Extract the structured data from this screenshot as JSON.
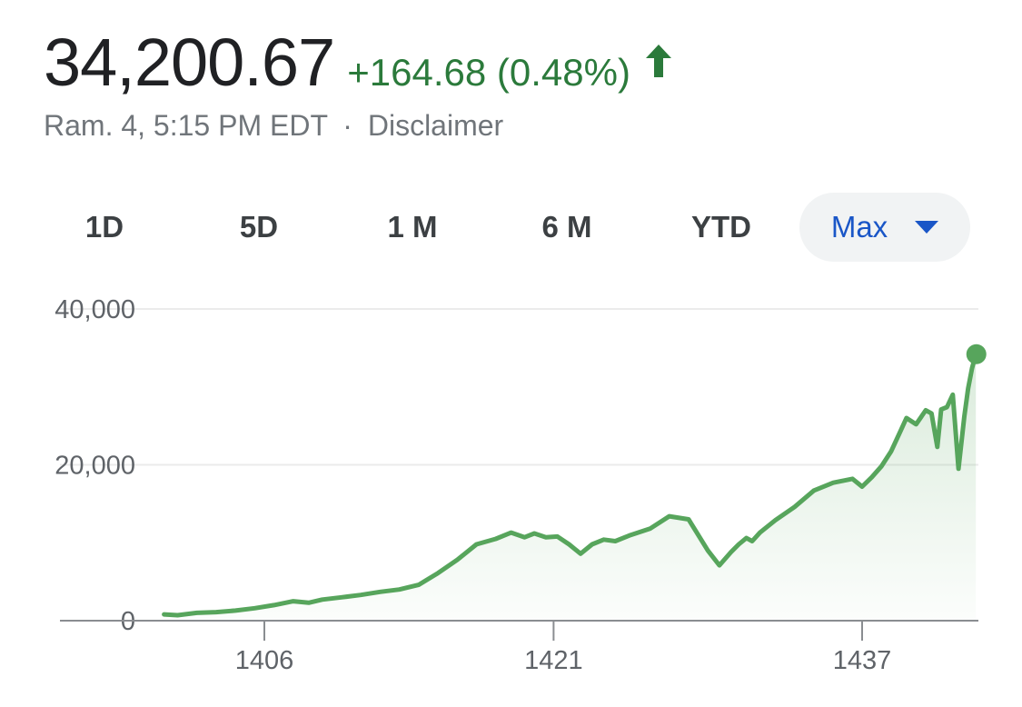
{
  "quote": {
    "price": "34,200.67",
    "change": "+164.68 (0.48%)",
    "direction_icon": "arrow-up-icon",
    "positive_color": "#2b7a3b",
    "timestamp": "Ram. 4, 5:15 PM EDT",
    "separator": "·",
    "disclaimer_label": "Disclaimer"
  },
  "range_tabs": [
    {
      "label": "1D",
      "selected": false
    },
    {
      "label": "5D",
      "selected": false
    },
    {
      "label": "1 M",
      "selected": false
    },
    {
      "label": "6 M",
      "selected": false
    },
    {
      "label": "YTD",
      "selected": false
    },
    {
      "label": "Max",
      "selected": true,
      "icon": "caret-down-icon"
    }
  ],
  "colors": {
    "line": "#57a55c",
    "selected_tab_text": "#1a56c7",
    "selected_tab_bg": "#f1f3f4"
  },
  "chart_data": {
    "type": "area",
    "title": "",
    "xlabel": "",
    "ylabel": "",
    "ylim": [
      0,
      40000
    ],
    "y_ticks": [
      "0",
      "20,000",
      "40,000"
    ],
    "x_ticks": [
      {
        "value": 1406,
        "label": "1406"
      },
      {
        "value": 1421,
        "label": "1421"
      },
      {
        "value": 1437,
        "label": "1437"
      }
    ],
    "grid": true,
    "legend": "none",
    "series": [
      {
        "x": [
          1400.8,
          1401.5,
          1402.5,
          1403.5,
          1404.5,
          1405.5,
          1406.5,
          1407.5,
          1408.3,
          1409.0,
          1410.0,
          1411.0,
          1412.0,
          1413.0,
          1414.0,
          1415.0,
          1416.0,
          1417.0,
          1418.0,
          1418.8,
          1419.5,
          1420.0,
          1420.6,
          1421.2,
          1421.8,
          1422.4,
          1423.0,
          1423.6,
          1424.2,
          1425.0,
          1426.0,
          1427.0,
          1428.0,
          1429.0,
          1429.6,
          1430.2,
          1430.6,
          1431.0,
          1431.3,
          1431.7,
          1432.5,
          1433.5,
          1434.5,
          1435.5,
          1436.5,
          1437.0,
          1437.5,
          1438.0,
          1438.5,
          1439.0,
          1439.3,
          1439.8,
          1440.3,
          1440.6,
          1440.9,
          1441.1,
          1441.4,
          1441.7,
          1442.0,
          1442.3,
          1442.5,
          1442.7,
          1442.9
        ],
        "y": [
          800,
          700,
          1000,
          1100,
          1300,
          1600,
          2000,
          2500,
          2300,
          2700,
          3000,
          3300,
          3700,
          4000,
          4600,
          6100,
          7800,
          9800,
          10500,
          11300,
          10700,
          11200,
          10700,
          10800,
          9800,
          8600,
          9800,
          10400,
          10200,
          11000,
          11800,
          13400,
          13000,
          9000,
          7100,
          8800,
          9800,
          10600,
          10200,
          11300,
          12900,
          14600,
          16700,
          17700,
          18200,
          17200,
          18400,
          19800,
          21700,
          24400,
          26000,
          25200,
          27000,
          26600,
          22300,
          27100,
          27400,
          29000,
          19500,
          26200,
          29800,
          32400,
          34200
        ]
      }
    ]
  }
}
